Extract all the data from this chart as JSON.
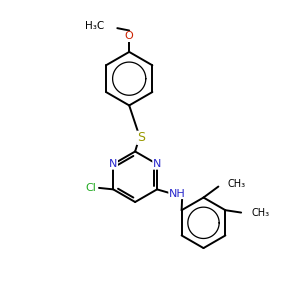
{
  "bg_color": "#ffffff",
  "bond_color": "#000000",
  "bond_width": 1.4,
  "atom_colors": {
    "N": "#2828cc",
    "S": "#999900",
    "Cl": "#22aa22",
    "O": "#cc2200",
    "C": "#000000"
  },
  "font_size": 7.5,
  "fig_width": 3.0,
  "fig_height": 3.0,
  "dpi": 100,
  "xlim": [
    0,
    10
  ],
  "ylim": [
    0,
    10
  ]
}
